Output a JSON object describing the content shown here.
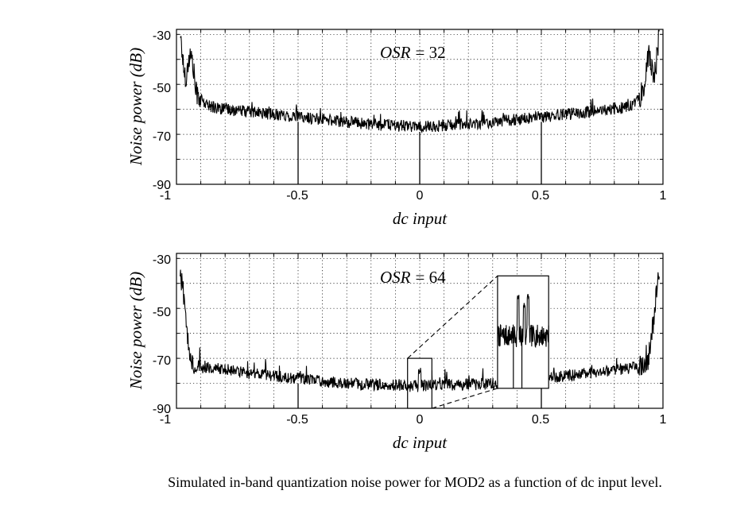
{
  "chart_data": [
    {
      "type": "line",
      "annotation_var": "OSR",
      "annotation_eq": "= 32",
      "xlabel": "dc input",
      "ylabel": "Noise power (dB)",
      "xlim": [
        -1,
        1
      ],
      "ylim": [
        -90,
        -28
      ],
      "xticks": [
        -1,
        -0.5,
        0,
        0.5,
        1
      ],
      "xtick_labels": [
        "-1",
        "-0.5",
        "0",
        "0.5",
        "1"
      ],
      "yticks": [
        -30,
        -50,
        -70,
        -90
      ],
      "ytick_labels": [
        "-30",
        "-50",
        "-70",
        "-90"
      ],
      "grid": true,
      "series": [
        {
          "name": "noise power",
          "x": [
            -0.985,
            -0.97,
            -0.96,
            -0.95,
            -0.94,
            -0.93,
            -0.92,
            -0.9,
            -0.88,
            -0.85,
            -0.8,
            -0.7,
            -0.6,
            -0.5,
            -0.4,
            -0.3,
            -0.2,
            -0.1,
            0,
            0.1,
            0.2,
            0.3,
            0.4,
            0.5,
            0.6,
            0.7,
            0.8,
            0.85,
            0.88,
            0.9,
            0.92,
            0.93,
            0.94,
            0.95,
            0.96,
            0.97,
            0.985
          ],
          "y": [
            -29,
            -44,
            -48,
            -40,
            -38,
            -44,
            -53,
            -56,
            -58,
            -59,
            -60,
            -61,
            -62,
            -63,
            -64,
            -65,
            -66,
            -66.5,
            -67,
            -66.5,
            -66,
            -65,
            -64,
            -63,
            -62,
            -61,
            -60,
            -59,
            -58,
            -56,
            -53,
            -44,
            -38,
            -40,
            -48,
            -44,
            -29
          ]
        }
      ],
      "dips": [
        -0.5,
        0,
        0.5
      ]
    },
    {
      "type": "line",
      "annotation_var": "OSR",
      "annotation_eq": "= 64",
      "xlabel": "dc input",
      "ylabel": "Noise power (dB)",
      "xlim": [
        -1,
        1
      ],
      "ylim": [
        -90,
        -28
      ],
      "xticks": [
        -1,
        -0.5,
        0,
        0.5,
        1
      ],
      "xtick_labels": [
        "-1",
        "-0.5",
        "0",
        "0.5",
        "1"
      ],
      "yticks": [
        -30,
        -50,
        -70,
        -90
      ],
      "ytick_labels": [
        "-30",
        "-50",
        "-70",
        "-90"
      ],
      "grid": true,
      "series": [
        {
          "name": "noise power",
          "x": [
            -0.985,
            -0.97,
            -0.96,
            -0.95,
            -0.94,
            -0.93,
            -0.9,
            -0.8,
            -0.7,
            -0.6,
            -0.5,
            -0.4,
            -0.3,
            -0.2,
            -0.1,
            0,
            0.1,
            0.2,
            0.3,
            0.4,
            0.5,
            0.6,
            0.7,
            0.8,
            0.9,
            0.93,
            0.94,
            0.95,
            0.96,
            0.97,
            0.985
          ],
          "y": [
            -35,
            -45,
            -56,
            -64,
            -70,
            -72,
            -73.5,
            -74.5,
            -76,
            -77,
            -78,
            -79,
            -80,
            -80.5,
            -80.5,
            -81,
            -80.5,
            -80.5,
            -80,
            -79,
            -78,
            -77,
            -76,
            -74.5,
            -73.5,
            -72,
            -70,
            -64,
            -56,
            -45,
            -35
          ]
        }
      ],
      "dips": [
        -0.5,
        0.5
      ],
      "zoom_box": {
        "x_range": [
          -0.05,
          0.05
        ],
        "y_range": [
          -90,
          -70
        ]
      },
      "inset": {
        "x_range": [
          0.32,
          0.53
        ],
        "y_range": [
          -82,
          -37
        ],
        "baseline": -61,
        "peaks": [
          {
            "x": 0.405,
            "y": -46
          },
          {
            "x": 0.43,
            "y": -49
          },
          {
            "x": 0.445,
            "y": -45
          }
        ],
        "dips": [
          0.385,
          0.42
        ]
      }
    }
  ],
  "caption": "Simulated in-band quantization noise power for MOD2 as a function of dc input level."
}
